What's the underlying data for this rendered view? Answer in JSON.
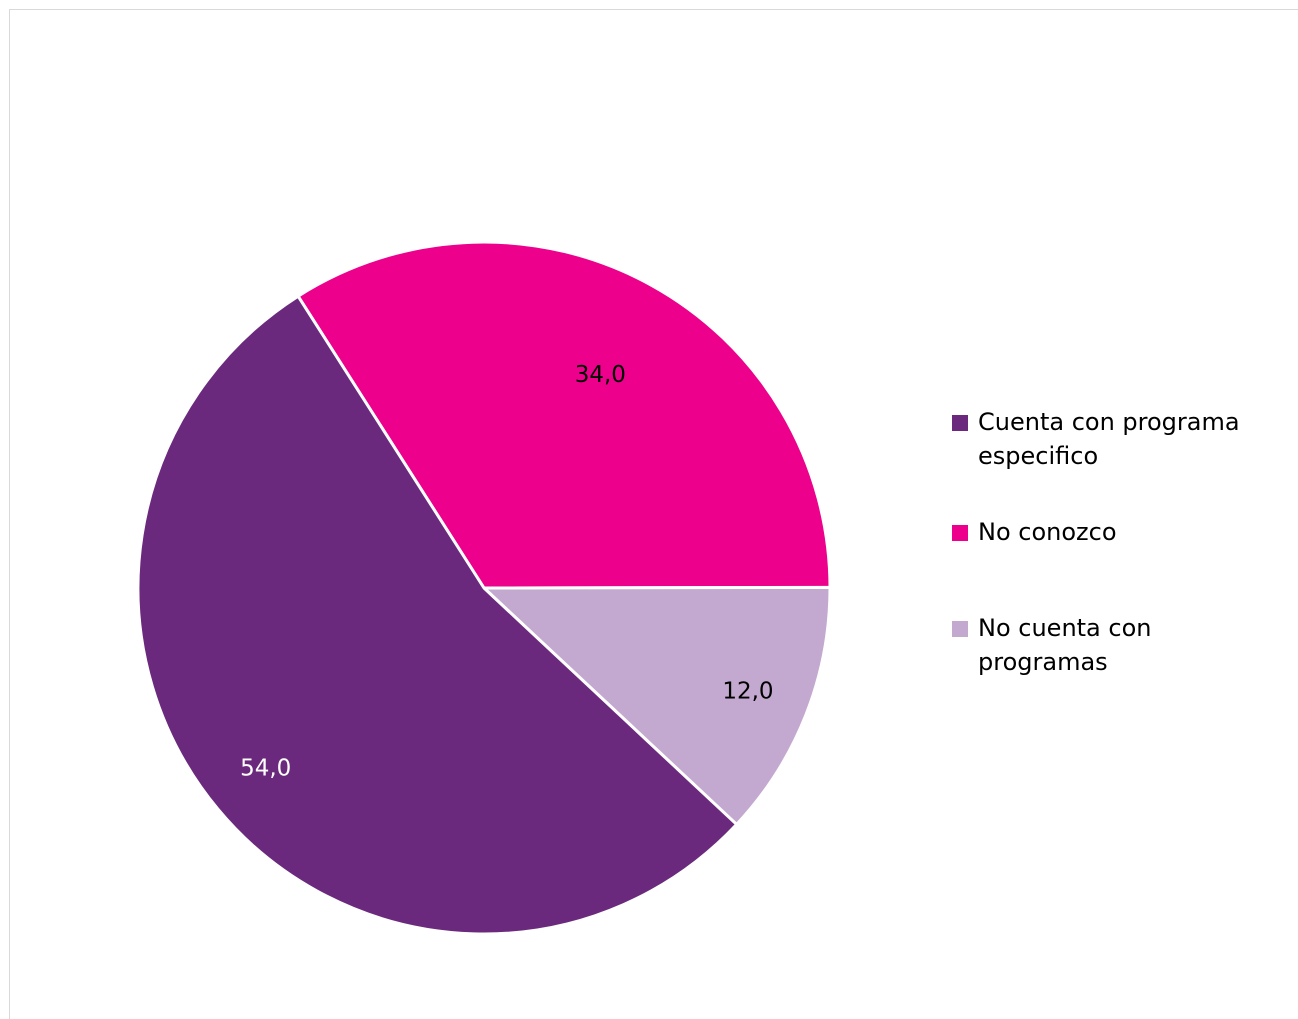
{
  "chart_data": {
    "type": "pie",
    "title": "",
    "categories": [
      "Cuenta con programa especifico",
      "No conozco",
      "No cuenta con programas"
    ],
    "values": [
      54.0,
      34.0,
      12.0
    ],
    "value_labels": [
      "54,0",
      "34,0",
      "12,0"
    ],
    "colors": [
      "#6b297d",
      "#ec008c",
      "#c3a8cf"
    ],
    "legend": {
      "position": "right",
      "entries": [
        {
          "label": "Cuenta con programa especifico",
          "color": "#6b297d"
        },
        {
          "label": "No conozco",
          "color": "#ec008c"
        },
        {
          "label": "No cuenta con programas",
          "color": "#c3a8cf"
        }
      ]
    }
  }
}
